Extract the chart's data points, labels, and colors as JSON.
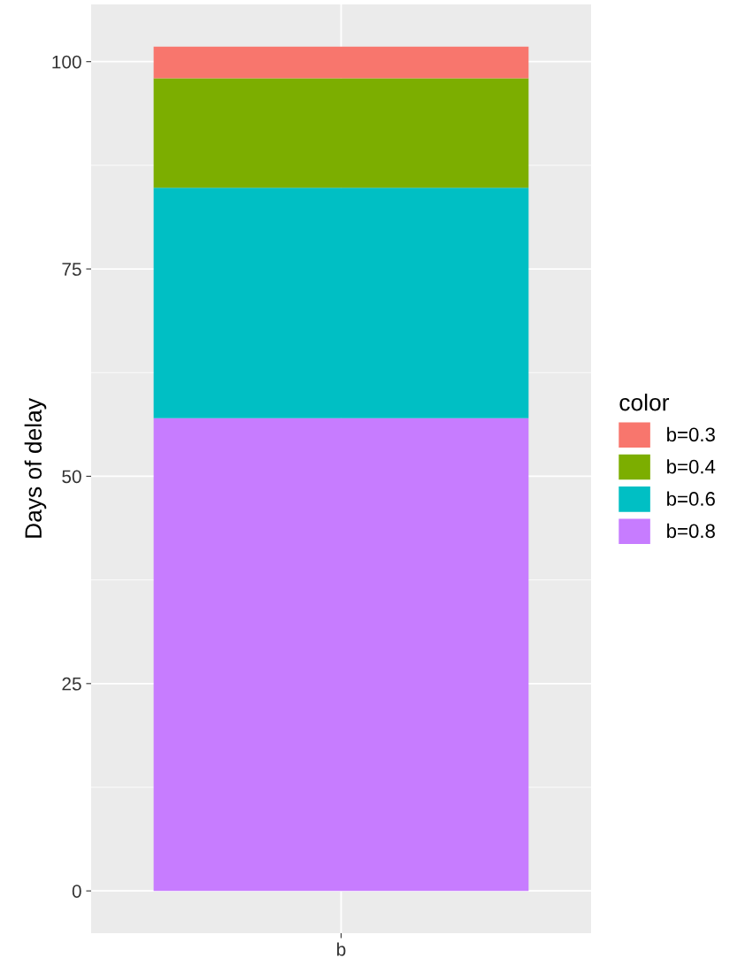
{
  "chart_data": {
    "type": "bar",
    "stacked": true,
    "ylabel": "Days of delay",
    "legend_title": "color",
    "legend": "right",
    "categories": [
      "b"
    ],
    "series": [
      {
        "name": "b=0.8",
        "color": "#c77cff",
        "values": [
          57.0
        ]
      },
      {
        "name": "b=0.6",
        "color": "#00bfc4",
        "values": [
          27.8
        ]
      },
      {
        "name": "b=0.4",
        "color": "#7cae00",
        "values": [
          13.2
        ]
      },
      {
        "name": "b=0.3",
        "color": "#f8766d",
        "values": [
          3.8
        ]
      }
    ],
    "ylim": [
      -5.1,
      106.9
    ],
    "yticks": [
      0,
      25,
      50,
      75,
      100
    ],
    "grid": true
  }
}
